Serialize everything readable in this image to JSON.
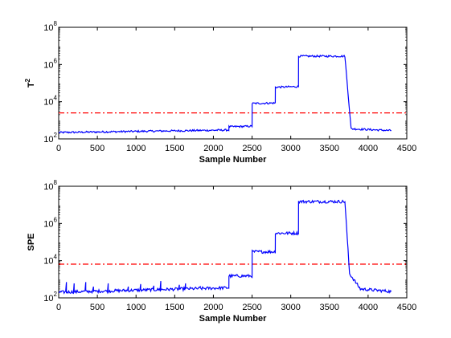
{
  "chart_data": [
    {
      "type": "line",
      "title": "",
      "xlabel": "Sample Number",
      "ylabel": "T",
      "ylabel_sup": "2",
      "xlim": [
        0,
        4500
      ],
      "xticks": [
        0,
        500,
        1000,
        1500,
        2000,
        2500,
        3000,
        3500,
        4000,
        4500
      ],
      "yscale": "log",
      "ylim": [
        100,
        100000000
      ],
      "yticks": [
        {
          "value": 100,
          "base": "10",
          "exp": "2"
        },
        {
          "value": 10000,
          "base": "10",
          "exp": "4"
        },
        {
          "value": 1000000,
          "base": "10",
          "exp": "6"
        },
        {
          "value": 100000000,
          "base": "10",
          "exp": "8"
        }
      ],
      "grid": false,
      "threshold": {
        "value": 2500,
        "color": "#ff0000",
        "style": "dash-dot"
      },
      "series": [
        {
          "color": "#0000ff",
          "x": [
            0,
            2200,
            2201,
            2500,
            2501,
            2800,
            2801,
            3100,
            3101,
            3700,
            3780,
            4300
          ],
          "y": [
            220,
            300,
            450,
            480,
            8000,
            8500,
            60000,
            65000,
            2800000,
            2800000,
            350,
            280
          ],
          "noise_log": 0.05
        }
      ]
    },
    {
      "type": "line",
      "title": "",
      "xlabel": "Sample Number",
      "ylabel": "SPE",
      "xlim": [
        0,
        4500
      ],
      "xticks": [
        0,
        500,
        1000,
        1500,
        2000,
        2500,
        3000,
        3500,
        4000,
        4500
      ],
      "yscale": "log",
      "ylim": [
        100,
        100000000
      ],
      "yticks": [
        {
          "value": 100,
          "base": "10",
          "exp": "2"
        },
        {
          "value": 10000,
          "base": "10",
          "exp": "4"
        },
        {
          "value": 1000000,
          "base": "10",
          "exp": "6"
        },
        {
          "value": 100000000,
          "base": "10",
          "exp": "8"
        }
      ],
      "grid": false,
      "threshold": {
        "value": 6500,
        "color": "#ff0000",
        "style": "dash-dot"
      },
      "series": [
        {
          "color": "#0000ff",
          "x": [
            0,
            2200,
            2201,
            2500,
            2501,
            2800,
            2801,
            3100,
            3101,
            3700,
            3760,
            3900,
            4300
          ],
          "y": [
            200,
            350,
            1500,
            1500,
            30000,
            30000,
            300000,
            300000,
            15000000,
            15000000,
            2000,
            300,
            220
          ],
          "noise_log": 0.08,
          "spikes": [
            {
              "x": 100,
              "y": 700
            },
            {
              "x": 200,
              "y": 600
            },
            {
              "x": 350,
              "y": 700
            },
            {
              "x": 450,
              "y": 400
            },
            {
              "x": 640,
              "y": 600
            },
            {
              "x": 900,
              "y": 400
            },
            {
              "x": 1060,
              "y": 550
            },
            {
              "x": 1230,
              "y": 450
            },
            {
              "x": 1320,
              "y": 800
            },
            {
              "x": 1560,
              "y": 500
            },
            {
              "x": 1640,
              "y": 600
            },
            {
              "x": 1830,
              "y": 400
            }
          ]
        }
      ]
    }
  ]
}
